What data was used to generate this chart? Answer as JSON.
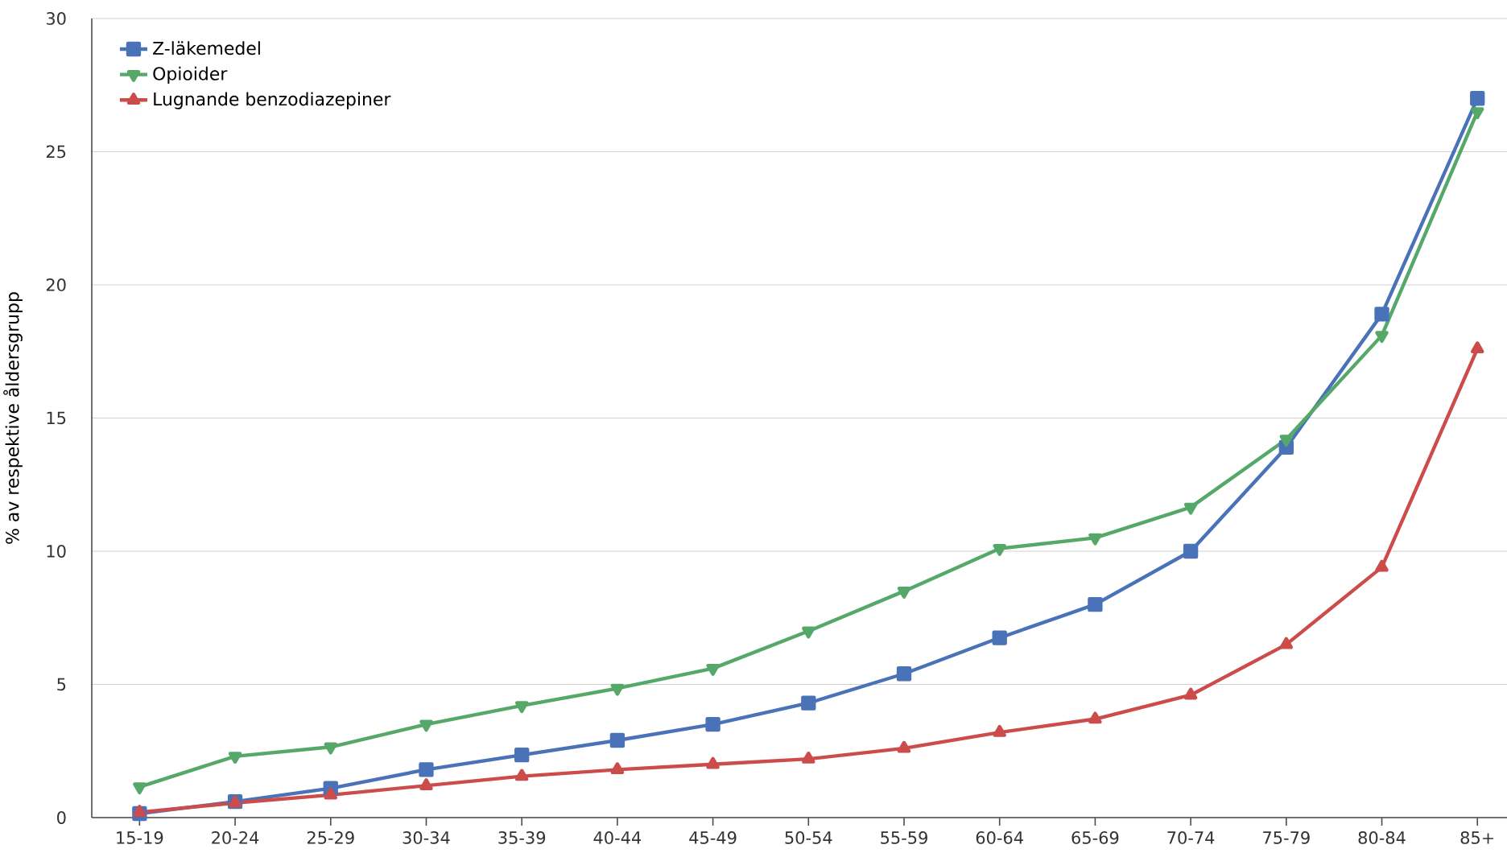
{
  "chart_data": {
    "type": "line",
    "ylabel": "% av respektive åldersgrupp",
    "categories": [
      "15-19",
      "20-24",
      "25-29",
      "30-34",
      "35-39",
      "40-44",
      "45-49",
      "50-54",
      "55-59",
      "60-64",
      "65-69",
      "70-74",
      "75-79",
      "80-84",
      "85+"
    ],
    "series": [
      {
        "name": "Z-läkemedel",
        "color": "#4a72b8",
        "marker": "square",
        "values": [
          0.15,
          0.6,
          1.1,
          1.8,
          2.35,
          2.9,
          3.5,
          4.3,
          5.4,
          6.75,
          8.0,
          10.0,
          13.9,
          18.9,
          27.0
        ]
      },
      {
        "name": "Opioider",
        "color": "#55a868",
        "marker": "triangle-down",
        "values": [
          1.15,
          2.3,
          2.65,
          3.5,
          4.2,
          4.85,
          5.6,
          7.0,
          8.5,
          10.1,
          10.5,
          11.65,
          14.2,
          18.1,
          26.5
        ]
      },
      {
        "name": "Lugnande benzodiazepiner",
        "color": "#cc4c4c",
        "marker": "triangle",
        "values": [
          0.2,
          0.55,
          0.85,
          1.2,
          1.55,
          1.8,
          2.0,
          2.2,
          2.6,
          3.2,
          3.7,
          4.6,
          6.5,
          9.4,
          17.6
        ]
      }
    ],
    "ylim": [
      0,
      30
    ],
    "yticks": [
      0,
      5,
      10,
      15,
      20,
      25,
      30
    ],
    "grid": "y",
    "legend": "top left",
    "line_style": "solid"
  }
}
